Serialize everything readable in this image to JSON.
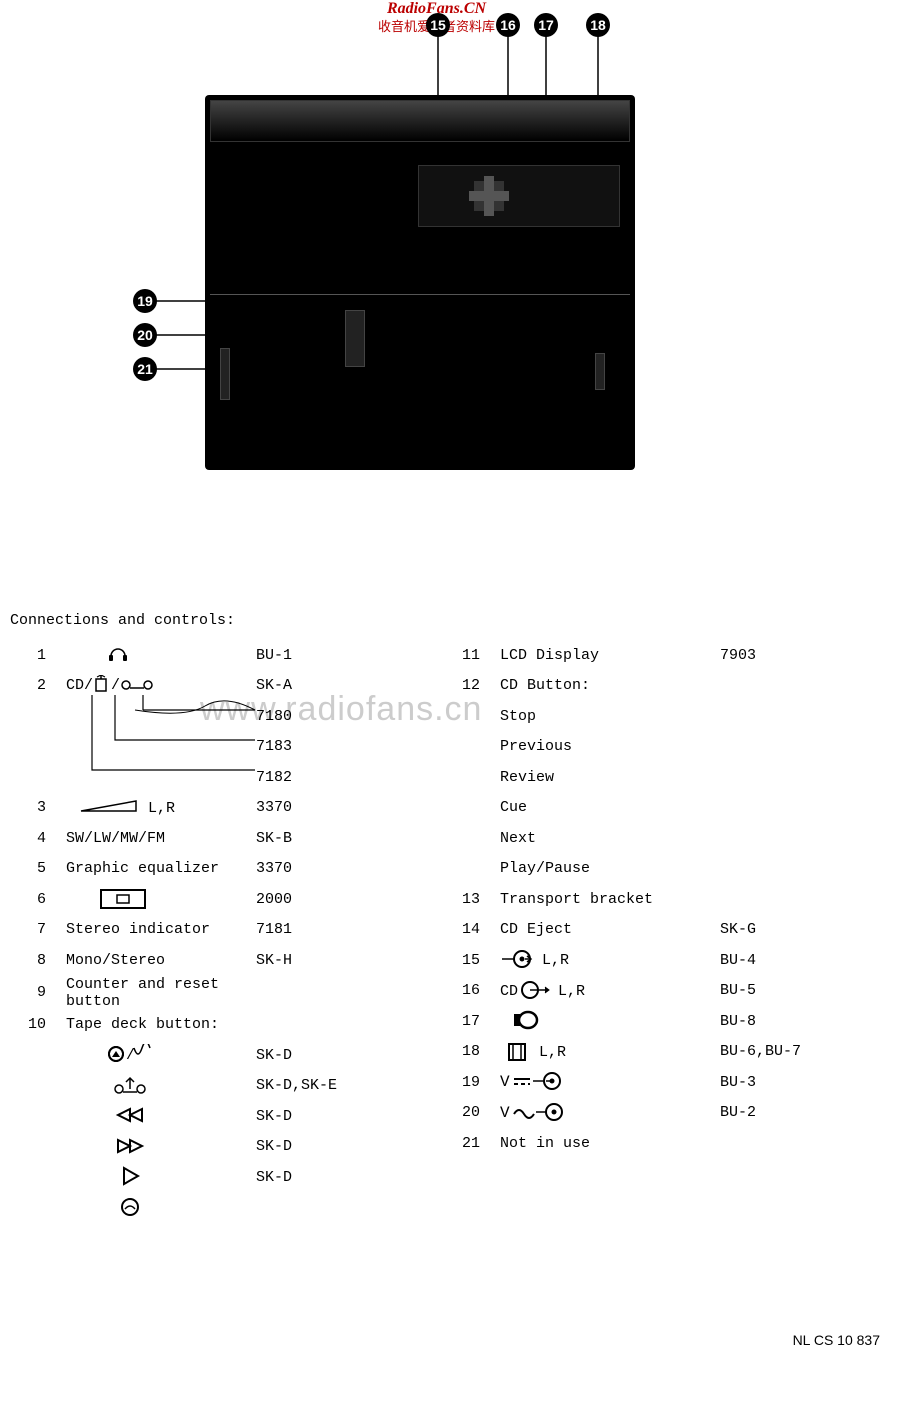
{
  "watermark": {
    "line1": "RadioFans.CN",
    "line2": "收音机爱好者资料库",
    "big": "www.radiofans.cn"
  },
  "callouts": {
    "top": [
      "15",
      "16",
      "17",
      "18"
    ],
    "left": [
      "19",
      "20",
      "21"
    ]
  },
  "section_title": "Connections and controls:",
  "left_rows": [
    {
      "n": "1",
      "desc_icon": "headphones",
      "code": "BU-1"
    },
    {
      "n": "2",
      "desc_icon": "cd-mic-tape",
      "code": "SK-A"
    },
    {
      "n": "",
      "desc": "",
      "code": "7180",
      "bracket": true
    },
    {
      "n": "",
      "desc": "",
      "code": "7183",
      "bracket": true
    },
    {
      "n": "",
      "desc": "",
      "code": "7182",
      "bracket": true
    },
    {
      "n": "3",
      "desc_icon": "vol-lr",
      "code": "3370"
    },
    {
      "n": "4",
      "desc": "SW/LW/MW/FM",
      "code": "SK-B"
    },
    {
      "n": "5",
      "desc": "Graphic equalizer",
      "code": "3370"
    },
    {
      "n": "6",
      "desc_icon": "cassette",
      "code": "2000"
    },
    {
      "n": "7",
      "desc": "Stereo indicator",
      "code": "7181"
    },
    {
      "n": "8",
      "desc": "Mono/Stereo",
      "code": "SK-H"
    },
    {
      "n": "9",
      "desc": "Counter and reset button",
      "code": ""
    },
    {
      "n": "10",
      "desc": "Tape deck button:",
      "code": ""
    },
    {
      "n": "",
      "desc_icon": "rec-wave",
      "code": "SK-D",
      "sub": true
    },
    {
      "n": "",
      "desc_icon": "tape-up",
      "code": "SK-D,SK-E",
      "sub": true
    },
    {
      "n": "",
      "desc_icon": "rew",
      "code": "SK-D",
      "sub": true
    },
    {
      "n": "",
      "desc_icon": "ff",
      "code": "SK-D",
      "sub": true
    },
    {
      "n": "",
      "desc_icon": "play",
      "code": "SK-D",
      "sub": true
    },
    {
      "n": "",
      "desc_icon": "eject",
      "code": "",
      "sub": true
    }
  ],
  "right_rows": [
    {
      "n": "11",
      "desc": "LCD Display",
      "code": "7903"
    },
    {
      "n": "12",
      "desc": "CD Button:",
      "code": ""
    },
    {
      "n": "",
      "desc": "Stop",
      "code": ""
    },
    {
      "n": "",
      "desc": "Previous",
      "code": ""
    },
    {
      "n": "",
      "desc": "Review",
      "code": ""
    },
    {
      "n": "",
      "desc": "Cue",
      "code": ""
    },
    {
      "n": "",
      "desc": "Next",
      "code": ""
    },
    {
      "n": "",
      "desc": "Play/Pause",
      "code": ""
    },
    {
      "n": "13",
      "desc": "Transport bracket",
      "code": ""
    },
    {
      "n": "14",
      "desc": "CD Eject",
      "code": "SK-G"
    },
    {
      "n": "15",
      "desc_icon": "lineout-lr",
      "code": "BU-4"
    },
    {
      "n": "16",
      "desc_icon": "cdout-lr",
      "code": "BU-5"
    },
    {
      "n": "17",
      "desc_icon": "ant",
      "code": "BU-8"
    },
    {
      "n": "18",
      "desc_icon": "spk-lr",
      "code": "BU-6,BU-7"
    },
    {
      "n": "19",
      "desc_icon": "vdc",
      "code": "BU-3"
    },
    {
      "n": "20",
      "desc_icon": "vac",
      "code": "BU-2"
    },
    {
      "n": "21",
      "desc": "Not in use",
      "code": ""
    }
  ],
  "footer": "NL CS 10 837"
}
